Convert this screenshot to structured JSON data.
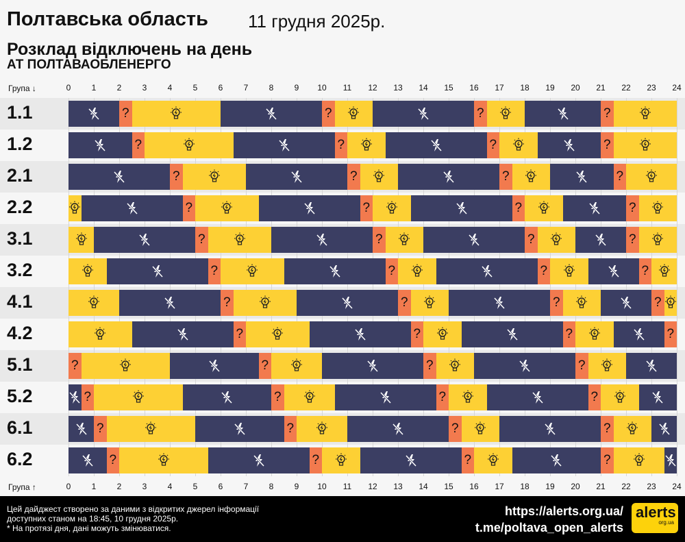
{
  "header": {
    "title": "Полтавська область",
    "date": "11 грудня 2025р.",
    "subtitle": "Розклад відключень на день",
    "company": "АТ ПОЛТАВАОБЛЕНЕРГО"
  },
  "axis": {
    "top_label": "Група ↓",
    "bottom_label": "Група ↑",
    "ticks": [
      "0",
      "1",
      "2",
      "3",
      "4",
      "5",
      "6",
      "7",
      "8",
      "9",
      "10",
      "11",
      "12",
      "13",
      "14",
      "15",
      "16",
      "17",
      "18",
      "19",
      "20",
      "21",
      "22",
      "23",
      "24"
    ]
  },
  "legend_symbols": {
    "off": "power-off-icon",
    "on": "light-bulb-icon",
    "unknown": "?"
  },
  "colors": {
    "off": "#3b3e63",
    "on": "#fdd034",
    "unknown": "#f27a4e"
  },
  "groups": [
    {
      "name": "1.1",
      "segments": [
        [
          "off",
          0,
          2
        ],
        [
          "unk",
          2,
          2.5
        ],
        [
          "on",
          2.5,
          6
        ],
        [
          "off",
          6,
          10
        ],
        [
          "unk",
          10,
          10.5
        ],
        [
          "on",
          10.5,
          12
        ],
        [
          "off",
          12,
          16
        ],
        [
          "unk",
          16,
          16.5
        ],
        [
          "on",
          16.5,
          18
        ],
        [
          "off",
          18,
          21
        ],
        [
          "unk",
          21,
          21.5
        ],
        [
          "on",
          21.5,
          24
        ]
      ]
    },
    {
      "name": "1.2",
      "segments": [
        [
          "off",
          0,
          2.5
        ],
        [
          "unk",
          2.5,
          3
        ],
        [
          "on",
          3,
          6.5
        ],
        [
          "off",
          6.5,
          10.5
        ],
        [
          "unk",
          10.5,
          11
        ],
        [
          "on",
          11,
          12.5
        ],
        [
          "off",
          12.5,
          16.5
        ],
        [
          "unk",
          16.5,
          17
        ],
        [
          "on",
          17,
          18.5
        ],
        [
          "off",
          18.5,
          21
        ],
        [
          "unk",
          21,
          21.5
        ],
        [
          "on",
          21.5,
          24
        ]
      ]
    },
    {
      "name": "2.1",
      "segments": [
        [
          "off",
          0,
          4
        ],
        [
          "unk",
          4,
          4.5
        ],
        [
          "on",
          4.5,
          7
        ],
        [
          "off",
          7,
          11
        ],
        [
          "unk",
          11,
          11.5
        ],
        [
          "on",
          11.5,
          13
        ],
        [
          "off",
          13,
          17
        ],
        [
          "unk",
          17,
          17.5
        ],
        [
          "on",
          17.5,
          19
        ],
        [
          "off",
          19,
          21.5
        ],
        [
          "unk",
          21.5,
          22
        ],
        [
          "on",
          22,
          24
        ]
      ]
    },
    {
      "name": "2.2",
      "segments": [
        [
          "on",
          0,
          0.5
        ],
        [
          "off",
          0.5,
          4.5
        ],
        [
          "unk",
          4.5,
          5
        ],
        [
          "on",
          5,
          7.5
        ],
        [
          "off",
          7.5,
          11.5
        ],
        [
          "unk",
          11.5,
          12
        ],
        [
          "on",
          12,
          13.5
        ],
        [
          "off",
          13.5,
          17.5
        ],
        [
          "unk",
          17.5,
          18
        ],
        [
          "on",
          18,
          19.5
        ],
        [
          "off",
          19.5,
          22
        ],
        [
          "unk",
          22,
          22.5
        ],
        [
          "on",
          22.5,
          24
        ]
      ]
    },
    {
      "name": "3.1",
      "segments": [
        [
          "on",
          0,
          1
        ],
        [
          "off",
          1,
          5
        ],
        [
          "unk",
          5,
          5.5
        ],
        [
          "on",
          5.5,
          8
        ],
        [
          "off",
          8,
          12
        ],
        [
          "unk",
          12,
          12.5
        ],
        [
          "on",
          12.5,
          14
        ],
        [
          "off",
          14,
          18
        ],
        [
          "unk",
          18,
          18.5
        ],
        [
          "on",
          18.5,
          20
        ],
        [
          "off",
          20,
          22
        ],
        [
          "unk",
          22,
          22.5
        ],
        [
          "on",
          22.5,
          24
        ]
      ]
    },
    {
      "name": "3.2",
      "segments": [
        [
          "on",
          0,
          1.5
        ],
        [
          "off",
          1.5,
          5.5
        ],
        [
          "unk",
          5.5,
          6
        ],
        [
          "on",
          6,
          8.5
        ],
        [
          "off",
          8.5,
          12.5
        ],
        [
          "unk",
          12.5,
          13
        ],
        [
          "on",
          13,
          14.5
        ],
        [
          "off",
          14.5,
          18.5
        ],
        [
          "unk",
          18.5,
          19
        ],
        [
          "on",
          19,
          20.5
        ],
        [
          "off",
          20.5,
          22.5
        ],
        [
          "unk",
          22.5,
          23
        ],
        [
          "on",
          23,
          24
        ]
      ]
    },
    {
      "name": "4.1",
      "segments": [
        [
          "on",
          0,
          2
        ],
        [
          "off",
          2,
          6
        ],
        [
          "unk",
          6,
          6.5
        ],
        [
          "on",
          6.5,
          9
        ],
        [
          "off",
          9,
          13
        ],
        [
          "unk",
          13,
          13.5
        ],
        [
          "on",
          13.5,
          15
        ],
        [
          "off",
          15,
          19
        ],
        [
          "unk",
          19,
          19.5
        ],
        [
          "on",
          19.5,
          21
        ],
        [
          "off",
          21,
          23
        ],
        [
          "unk",
          23,
          23.5
        ],
        [
          "on",
          23.5,
          24
        ]
      ]
    },
    {
      "name": "4.2",
      "segments": [
        [
          "on",
          0,
          2.5
        ],
        [
          "off",
          2.5,
          6.5
        ],
        [
          "unk",
          6.5,
          7
        ],
        [
          "on",
          7,
          9.5
        ],
        [
          "off",
          9.5,
          13.5
        ],
        [
          "unk",
          13.5,
          14
        ],
        [
          "on",
          14,
          15.5
        ],
        [
          "off",
          15.5,
          19.5
        ],
        [
          "unk",
          19.5,
          20
        ],
        [
          "on",
          20,
          21.5
        ],
        [
          "off",
          21.5,
          23.5
        ],
        [
          "unk",
          23.5,
          24
        ]
      ]
    },
    {
      "name": "5.1",
      "segments": [
        [
          "unk",
          0,
          0.5
        ],
        [
          "on",
          0.5,
          4
        ],
        [
          "off",
          4,
          7.5
        ],
        [
          "unk",
          7.5,
          8
        ],
        [
          "on",
          8,
          10
        ],
        [
          "off",
          10,
          14
        ],
        [
          "unk",
          14,
          14.5
        ],
        [
          "on",
          14.5,
          16
        ],
        [
          "off",
          16,
          20
        ],
        [
          "unk",
          20,
          20.5
        ],
        [
          "on",
          20.5,
          22
        ],
        [
          "off",
          22,
          24
        ]
      ]
    },
    {
      "name": "5.2",
      "segments": [
        [
          "off",
          0,
          0.5
        ],
        [
          "unk",
          0.5,
          1
        ],
        [
          "on",
          1,
          4.5
        ],
        [
          "off",
          4.5,
          8
        ],
        [
          "unk",
          8,
          8.5
        ],
        [
          "on",
          8.5,
          10.5
        ],
        [
          "off",
          10.5,
          14.5
        ],
        [
          "unk",
          14.5,
          15
        ],
        [
          "on",
          15,
          16.5
        ],
        [
          "off",
          16.5,
          20.5
        ],
        [
          "unk",
          20.5,
          21
        ],
        [
          "on",
          21,
          22.5
        ],
        [
          "off",
          22.5,
          24
        ]
      ]
    },
    {
      "name": "6.1",
      "segments": [
        [
          "off",
          0,
          1
        ],
        [
          "unk",
          1,
          1.5
        ],
        [
          "on",
          1.5,
          5
        ],
        [
          "off",
          5,
          8.5
        ],
        [
          "unk",
          8.5,
          9
        ],
        [
          "on",
          9,
          11
        ],
        [
          "off",
          11,
          15
        ],
        [
          "unk",
          15,
          15.5
        ],
        [
          "on",
          15.5,
          17
        ],
        [
          "off",
          17,
          21
        ],
        [
          "unk",
          21,
          21.5
        ],
        [
          "on",
          21.5,
          23
        ],
        [
          "off",
          23,
          24
        ]
      ]
    },
    {
      "name": "6.2",
      "segments": [
        [
          "off",
          0,
          1.5
        ],
        [
          "unk",
          1.5,
          2
        ],
        [
          "on",
          2,
          5.5
        ],
        [
          "off",
          5.5,
          9.5
        ],
        [
          "unk",
          9.5,
          10
        ],
        [
          "on",
          10,
          11.5
        ],
        [
          "off",
          11.5,
          15.5
        ],
        [
          "unk",
          15.5,
          16
        ],
        [
          "on",
          16,
          17.5
        ],
        [
          "off",
          17.5,
          21
        ],
        [
          "unk",
          21,
          21.5
        ],
        [
          "on",
          21.5,
          23.5
        ],
        [
          "off",
          23.5,
          24
        ]
      ]
    }
  ],
  "footer": {
    "note_lines": [
      "Цей дайджест створено за даними з відкритих джерел інформації",
      "доступних станом на 18:45, 10 грудня 2025р.",
      "* На протязі дня, дані можуть змінюватися."
    ],
    "link1": "https://alerts.org.ua/",
    "link2": "t.me/poltava_open_alerts",
    "logo_big": "alerts",
    "logo_small": "org.ua"
  }
}
